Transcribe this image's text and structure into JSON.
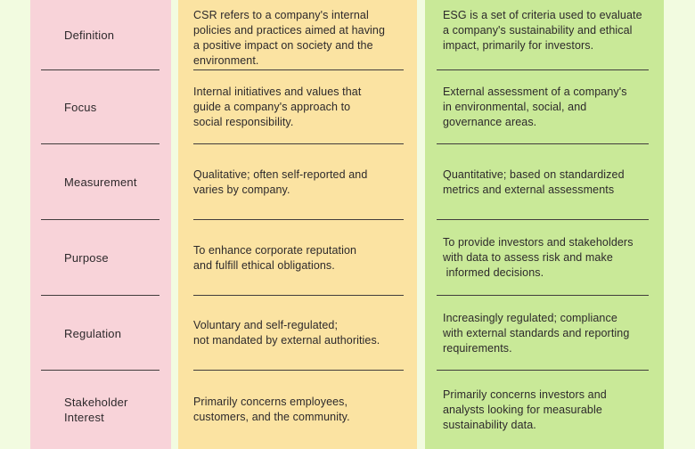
{
  "colors": {
    "page_background": "#f2fbe0",
    "labels_column": "#f8d3d9",
    "csr_column": "#fbe3a2",
    "esg_column": "#c9e998",
    "text": "#2d292b",
    "separator_line": "#413c3c"
  },
  "table": {
    "rows": [
      {
        "label": "Definition",
        "csr": "CSR refers to a company's internal\npolicies and practices aimed at having\na positive impact on society and the\nenvironment.",
        "esg": "ESG is a set of criteria used to evaluate\na company's sustainability and ethical\nimpact, primarily for investors."
      },
      {
        "label": "Focus",
        "csr": "Internal initiatives and values that\nguide a company's approach to\nsocial responsibility.",
        "esg": "External assessment of a company's\nin environmental, social, and\ngovernance areas."
      },
      {
        "label": "Measurement",
        "csr": "Qualitative; often self-reported and\nvaries by company.",
        "esg": "Quantitative; based on standardized\nmetrics and external assessments"
      },
      {
        "label": "Purpose",
        "csr": "To enhance corporate reputation\nand fulfill ethical obligations.",
        "esg": "To provide investors and stakeholders\nwith data to assess risk and make\n informed decisions."
      },
      {
        "label": "Regulation",
        "csr": "Voluntary and self-regulated;\nnot mandated by external authorities.",
        "esg": "Increasingly regulated; compliance\nwith external standards and reporting\nrequirements."
      },
      {
        "label": "Stakeholder\nInterest",
        "csr": "Primarily concerns employees,\ncustomers, and the community.",
        "esg": "Primarily concerns investors and\nanalysts looking for measurable\nsustainability data."
      }
    ]
  }
}
